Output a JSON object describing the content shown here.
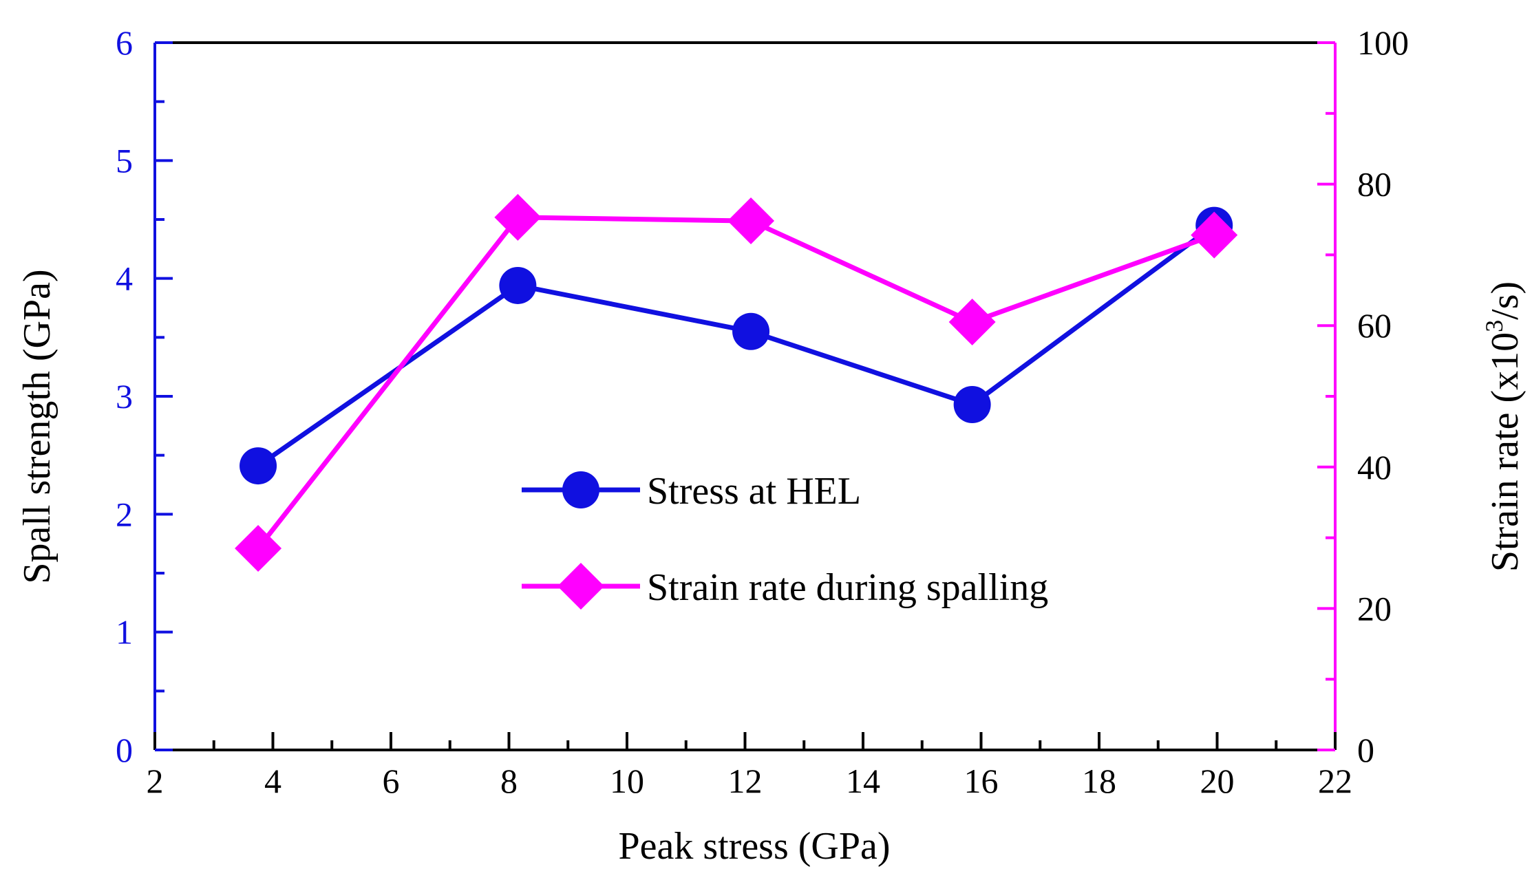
{
  "colors": {
    "left_axis": "#1010e0",
    "right_axis": "#ff00ff",
    "frame": "#000000"
  },
  "chart_data": {
    "type": "line",
    "xlabel": "Peak stress (GPa)",
    "ylabel_left": "Spall strength (GPa)",
    "ylabel_right_parts": {
      "before": "Strain rate (x10",
      "sup": "3",
      "after": "/s)"
    },
    "xlim": [
      2,
      22
    ],
    "ylim_left": [
      0,
      6
    ],
    "ylim_right": [
      0,
      100
    ],
    "x_ticks": [
      "2",
      "4",
      "6",
      "8",
      "10",
      "12",
      "14",
      "16",
      "18",
      "20",
      "22"
    ],
    "y_left_ticks": [
      "0",
      "1",
      "2",
      "3",
      "4",
      "5",
      "6"
    ],
    "y_right_ticks": [
      "0",
      "20",
      "40",
      "60",
      "80",
      "100"
    ],
    "legend_position": "center",
    "series": [
      {
        "name": "Stress at HEL",
        "axis": "left",
        "marker": "circle",
        "color": "#1010e0",
        "x": [
          3.75,
          8.15,
          12.1,
          15.85,
          19.95
        ],
        "y": [
          2.41,
          3.94,
          3.55,
          2.93,
          4.45
        ]
      },
      {
        "name": "Strain rate during spalling",
        "axis": "right",
        "marker": "diamond",
        "color": "#ff00ff",
        "x": [
          3.75,
          8.15,
          12.1,
          15.85,
          19.95
        ],
        "y": [
          28.5,
          75.3,
          74.8,
          60.5,
          72.8
        ]
      }
    ]
  }
}
